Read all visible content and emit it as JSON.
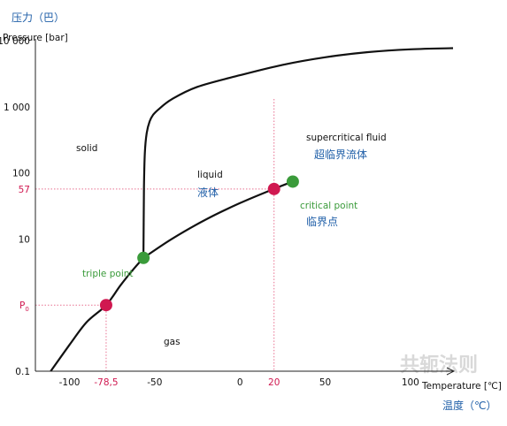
{
  "labels": {
    "ylabel_cn": "压力（巴）",
    "ylabel": "Pressure [bar]",
    "xlabel": "Temperature [℃]",
    "xlabel_cn": "温度（℃）",
    "watermark": "共轭法则"
  },
  "regions": {
    "solid": "solid",
    "liquid": "liquid",
    "liquid_cn": "液体",
    "gas": "gas",
    "supercritical": "supercritical fluid",
    "supercritical_cn": "超临界流体"
  },
  "points": {
    "triple": {
      "label": "triple point",
      "T": -56.6,
      "P": 5.18
    },
    "critical": {
      "label": "critical point",
      "label_cn": "临界点",
      "T": 31,
      "P": 73.8
    },
    "p57": {
      "T": 20,
      "P": 57
    },
    "p0": {
      "T": -78.5,
      "P": 1
    }
  },
  "chart_data": {
    "type": "line",
    "title": "",
    "xlabel": "Temperature [℃]",
    "ylabel": "Pressure [bar]",
    "y_scale": "log",
    "xlim": [
      -120,
      125
    ],
    "ylim": [
      0.1,
      10000
    ],
    "x_ticks": [
      {
        "value": -100,
        "label": "-100",
        "color": "#111111"
      },
      {
        "value": -78.5,
        "label": "-78,5",
        "color": "#d01850"
      },
      {
        "value": -50,
        "label": "-50",
        "color": "#111111"
      },
      {
        "value": 0,
        "label": "0",
        "color": "#111111"
      },
      {
        "value": 20,
        "label": "20",
        "color": "#d01850"
      },
      {
        "value": 50,
        "label": "50",
        "color": "#111111"
      },
      {
        "value": 100,
        "label": "100",
        "color": "#111111"
      }
    ],
    "y_ticks": [
      {
        "value": 10000,
        "label": "10 000",
        "color": "#111111"
      },
      {
        "value": 1000,
        "label": "1 000",
        "color": "#111111"
      },
      {
        "value": 100,
        "label": "100",
        "color": "#111111"
      },
      {
        "value": 57,
        "label": "57",
        "color": "#d01850"
      },
      {
        "value": 10,
        "label": "10",
        "color": "#111111"
      },
      {
        "value": 1,
        "label": "P",
        "sub": "0",
        "color": "#d01850"
      },
      {
        "value": 0.1,
        "label": "0.1",
        "color": "#111111"
      }
    ],
    "series": [
      {
        "key": "sublimation",
        "x": [
          -111,
          -100,
          -90,
          -78.5,
          -70,
          -62,
          -56.6
        ],
        "y": [
          0.1,
          0.25,
          0.55,
          1,
          2.0,
          3.6,
          5.18
        ]
      },
      {
        "key": "vaporization",
        "x": [
          -56.6,
          -40,
          -20,
          0,
          20,
          31
        ],
        "y": [
          5.18,
          10,
          19.7,
          34.9,
          57.3,
          73.8
        ]
      },
      {
        "key": "melting",
        "x": [
          -56.6,
          -56.3,
          -55.8,
          -54.7,
          -53,
          -51,
          -48,
          -40,
          -25,
          0,
          25,
          50,
          75,
          100,
          125
        ],
        "y": [
          5.18,
          60,
          200,
          400,
          600,
          750,
          900,
          1300,
          2000,
          3000,
          4300,
          5600,
          6700,
          7400,
          7700
        ]
      }
    ]
  },
  "colors": {
    "curve": "#111111",
    "axis": "#222222",
    "red": "#d01850",
    "green": "#3a9b3a",
    "blue": "#1f5fa8",
    "guide": "#e87090"
  }
}
